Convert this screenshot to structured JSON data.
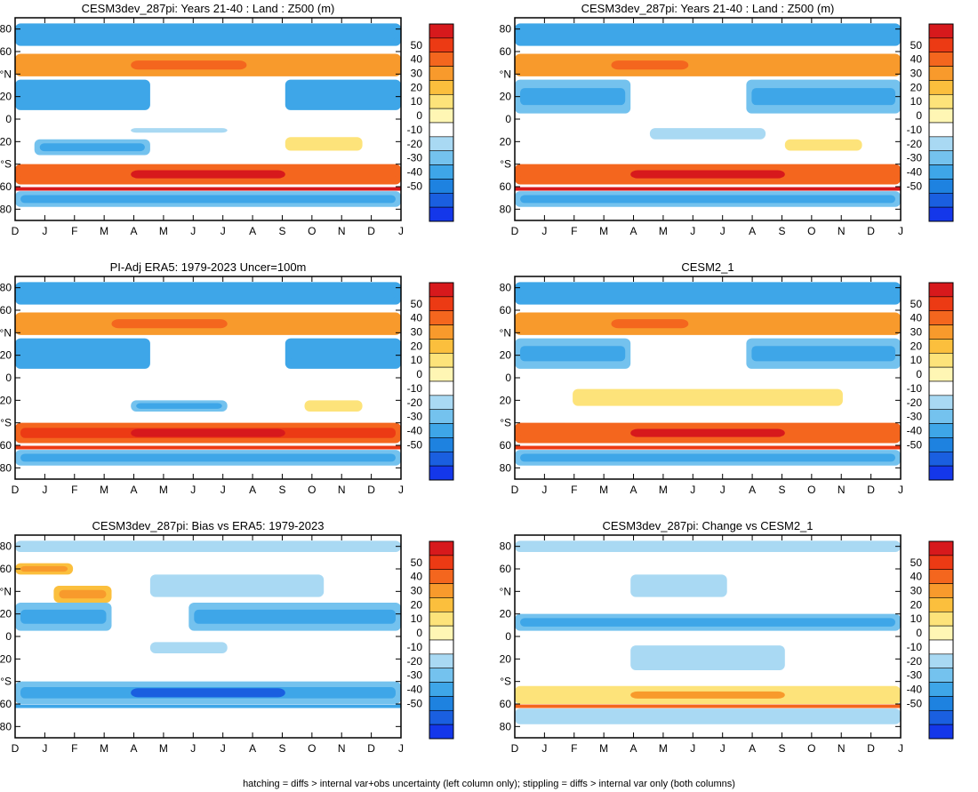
{
  "figure": {
    "footnote": "hatching = diffs > internal var+obs uncertainty (left column only); stippling = diffs > internal var only (both columns)"
  },
  "chart_data": [
    {
      "type": "heatmap",
      "title": "CESM3dev_287pi: Years 21-40 : Land : Z500 (m)",
      "x_ticks": [
        "D",
        "J",
        "F",
        "M",
        "A",
        "M",
        "J",
        "J",
        "A",
        "S",
        "O",
        "N",
        "D",
        "J"
      ],
      "y_ticks": [
        "80",
        "60",
        "°N",
        "20",
        "0",
        "20",
        "°S",
        "60",
        "80"
      ],
      "features": [
        {
          "kind": "band",
          "lat": [
            65,
            85
          ],
          "value": -20
        },
        {
          "kind": "band",
          "lat": [
            38,
            58
          ],
          "value": 20,
          "peak": 30,
          "peak_span": [
            0.3,
            0.6
          ]
        },
        {
          "kind": "band",
          "lat": [
            8,
            35
          ],
          "value": -20,
          "gap_span": [
            0.35,
            0.7
          ],
          "hatched_edges": true
        },
        {
          "kind": "band",
          "lat": [
            -12,
            -8
          ],
          "value": -10,
          "span": [
            0.3,
            0.55
          ]
        },
        {
          "kind": "band",
          "lat": [
            -32,
            -18
          ],
          "value": -15,
          "span": [
            0.05,
            0.35
          ]
        },
        {
          "kind": "band",
          "lat": [
            -28,
            -16
          ],
          "value": 10,
          "span": [
            0.7,
            0.9
          ]
        },
        {
          "kind": "band",
          "lat": [
            -58,
            -40
          ],
          "value": 30,
          "peak": 45
        },
        {
          "kind": "line",
          "lat": -62,
          "value": 50
        },
        {
          "kind": "band",
          "lat": [
            -78,
            -64
          ],
          "value": -15
        }
      ]
    },
    {
      "type": "heatmap",
      "title": "CESM3dev_287pi: Years 21-40 : Land : Z500 (m)",
      "x_ticks": [
        "D",
        "J",
        "F",
        "M",
        "A",
        "M",
        "J",
        "J",
        "A",
        "S",
        "O",
        "N",
        "D",
        "J"
      ],
      "y_ticks": [
        "80",
        "60",
        "°N",
        "20",
        "0",
        "20",
        "°S",
        "60",
        "80"
      ],
      "features": [
        {
          "kind": "band",
          "lat": [
            65,
            85
          ],
          "value": -20
        },
        {
          "kind": "band",
          "lat": [
            38,
            58
          ],
          "value": 20,
          "peak": 30,
          "peak_span": [
            0.25,
            0.45
          ]
        },
        {
          "kind": "band",
          "lat": [
            5,
            35
          ],
          "value": -15,
          "gap_span": [
            0.3,
            0.6
          ]
        },
        {
          "kind": "band",
          "lat": [
            -18,
            -8
          ],
          "value": -10,
          "span": [
            0.35,
            0.65
          ]
        },
        {
          "kind": "band",
          "lat": [
            -28,
            -18
          ],
          "value": 10,
          "span": [
            0.7,
            0.9
          ]
        },
        {
          "kind": "band",
          "lat": [
            -58,
            -40
          ],
          "value": 30,
          "peak": 45
        },
        {
          "kind": "line",
          "lat": -62,
          "value": 50
        },
        {
          "kind": "band",
          "lat": [
            -78,
            -64
          ],
          "value": -15
        }
      ]
    },
    {
      "type": "heatmap",
      "title": "PI-Adj ERA5: 1979-2023 Uncer=100m",
      "x_ticks": [
        "D",
        "J",
        "F",
        "M",
        "A",
        "M",
        "J",
        "J",
        "A",
        "S",
        "O",
        "N",
        "D",
        "J"
      ],
      "y_ticks": [
        "80",
        "60",
        "°N",
        "20",
        "0",
        "20",
        "°S",
        "60",
        "80"
      ],
      "features": [
        {
          "kind": "band",
          "lat": [
            65,
            85
          ],
          "value": -20
        },
        {
          "kind": "band",
          "lat": [
            38,
            58
          ],
          "value": 20,
          "peak": 30,
          "peak_span": [
            0.25,
            0.55
          ]
        },
        {
          "kind": "band",
          "lat": [
            8,
            35
          ],
          "value": -20,
          "gap_span": [
            0.35,
            0.7
          ]
        },
        {
          "kind": "band",
          "lat": [
            -30,
            -20
          ],
          "value": -15,
          "span": [
            0.3,
            0.55
          ]
        },
        {
          "kind": "band",
          "lat": [
            -30,
            -20
          ],
          "value": 10,
          "span": [
            0.75,
            0.9
          ]
        },
        {
          "kind": "band",
          "lat": [
            -58,
            -40
          ],
          "value": 35,
          "peak": 50
        },
        {
          "kind": "line",
          "lat": -62,
          "value": 40
        },
        {
          "kind": "band",
          "lat": [
            -78,
            -64
          ],
          "value": -15
        }
      ]
    },
    {
      "type": "heatmap",
      "title": "CESM2_1",
      "x_ticks": [
        "D",
        "J",
        "F",
        "M",
        "A",
        "M",
        "J",
        "J",
        "A",
        "S",
        "O",
        "N",
        "D",
        "J"
      ],
      "y_ticks": [
        "80",
        "60",
        "°N",
        "20",
        "0",
        "20",
        "°S",
        "60",
        "80"
      ],
      "features": [
        {
          "kind": "band",
          "lat": [
            65,
            85
          ],
          "value": -20
        },
        {
          "kind": "band",
          "lat": [
            38,
            58
          ],
          "value": 20,
          "peak": 30,
          "peak_span": [
            0.25,
            0.45
          ]
        },
        {
          "kind": "band",
          "lat": [
            8,
            35
          ],
          "value": -15,
          "gap_span": [
            0.3,
            0.6
          ]
        },
        {
          "kind": "band",
          "lat": [
            -25,
            -10
          ],
          "value": 10,
          "span": [
            0.15,
            0.85
          ]
        },
        {
          "kind": "band",
          "lat": [
            -58,
            -40
          ],
          "value": 30,
          "peak": 45
        },
        {
          "kind": "line",
          "lat": -62,
          "value": 40
        },
        {
          "kind": "band",
          "lat": [
            -78,
            -64
          ],
          "value": -15
        }
      ]
    },
    {
      "type": "heatmap",
      "title": "CESM3dev_287pi: Bias vs ERA5: 1979-2023",
      "x_ticks": [
        "D",
        "J",
        "F",
        "M",
        "A",
        "M",
        "J",
        "J",
        "A",
        "S",
        "O",
        "N",
        "D",
        "J"
      ],
      "y_ticks": [
        "80",
        "60",
        "°N",
        "20",
        "0",
        "20",
        "°S",
        "60",
        "80"
      ],
      "features": [
        {
          "kind": "band",
          "lat": [
            75,
            85
          ],
          "value": -10
        },
        {
          "kind": "band",
          "lat": [
            55,
            65
          ],
          "value": 15,
          "span": [
            0.0,
            0.15
          ]
        },
        {
          "kind": "band",
          "lat": [
            30,
            45
          ],
          "value": 15,
          "span": [
            0.1,
            0.25
          ]
        },
        {
          "kind": "band",
          "lat": [
            35,
            55
          ],
          "value": -10,
          "span": [
            0.35,
            0.8
          ]
        },
        {
          "kind": "band",
          "lat": [
            5,
            30
          ],
          "value": -15,
          "span": [
            0.0,
            0.25
          ]
        },
        {
          "kind": "band",
          "lat": [
            5,
            30
          ],
          "value": -15,
          "span": [
            0.45,
            1.0
          ]
        },
        {
          "kind": "band",
          "lat": [
            -15,
            -5
          ],
          "value": -10,
          "span": [
            0.35,
            0.55
          ]
        },
        {
          "kind": "band",
          "lat": [
            -60,
            -40
          ],
          "value": -15,
          "peak": -40
        },
        {
          "kind": "line",
          "lat": -62,
          "value": -20
        }
      ]
    },
    {
      "type": "heatmap",
      "title": "CESM3dev_287pi: Change vs CESM2_1",
      "x_ticks": [
        "D",
        "J",
        "F",
        "M",
        "A",
        "M",
        "J",
        "J",
        "A",
        "S",
        "O",
        "N",
        "D",
        "J"
      ],
      "y_ticks": [
        "80",
        "60",
        "°N",
        "20",
        "0",
        "20",
        "°S",
        "60",
        "80"
      ],
      "features": [
        {
          "kind": "band",
          "lat": [
            75,
            85
          ],
          "value": -10
        },
        {
          "kind": "band",
          "lat": [
            35,
            55
          ],
          "value": -10,
          "span": [
            0.3,
            0.55
          ]
        },
        {
          "kind": "band",
          "lat": [
            5,
            20
          ],
          "value": -15
        },
        {
          "kind": "band",
          "lat": [
            -30,
            -8
          ],
          "value": -10,
          "span": [
            0.3,
            0.7
          ]
        },
        {
          "kind": "band",
          "lat": [
            -60,
            -44
          ],
          "value": 10,
          "peak": 20
        },
        {
          "kind": "line",
          "lat": -62,
          "value": 30
        },
        {
          "kind": "band",
          "lat": [
            -78,
            -64
          ],
          "value": -10
        }
      ]
    }
  ],
  "colorbar": {
    "levels": [
      "50",
      "40",
      "30",
      "20",
      "10",
      "0",
      "-10",
      "-20",
      "-30",
      "-40",
      "-50"
    ],
    "colors": [
      "#d7191c",
      "#ec3a14",
      "#f4661e",
      "#f89a2c",
      "#fbbf3d",
      "#fde37a",
      "#fff6b4",
      "#ffffff",
      "#a9d9f3",
      "#74c2ee",
      "#3ea6e8",
      "#1e82e0",
      "#1a5fe0",
      "#1437ea"
    ]
  }
}
